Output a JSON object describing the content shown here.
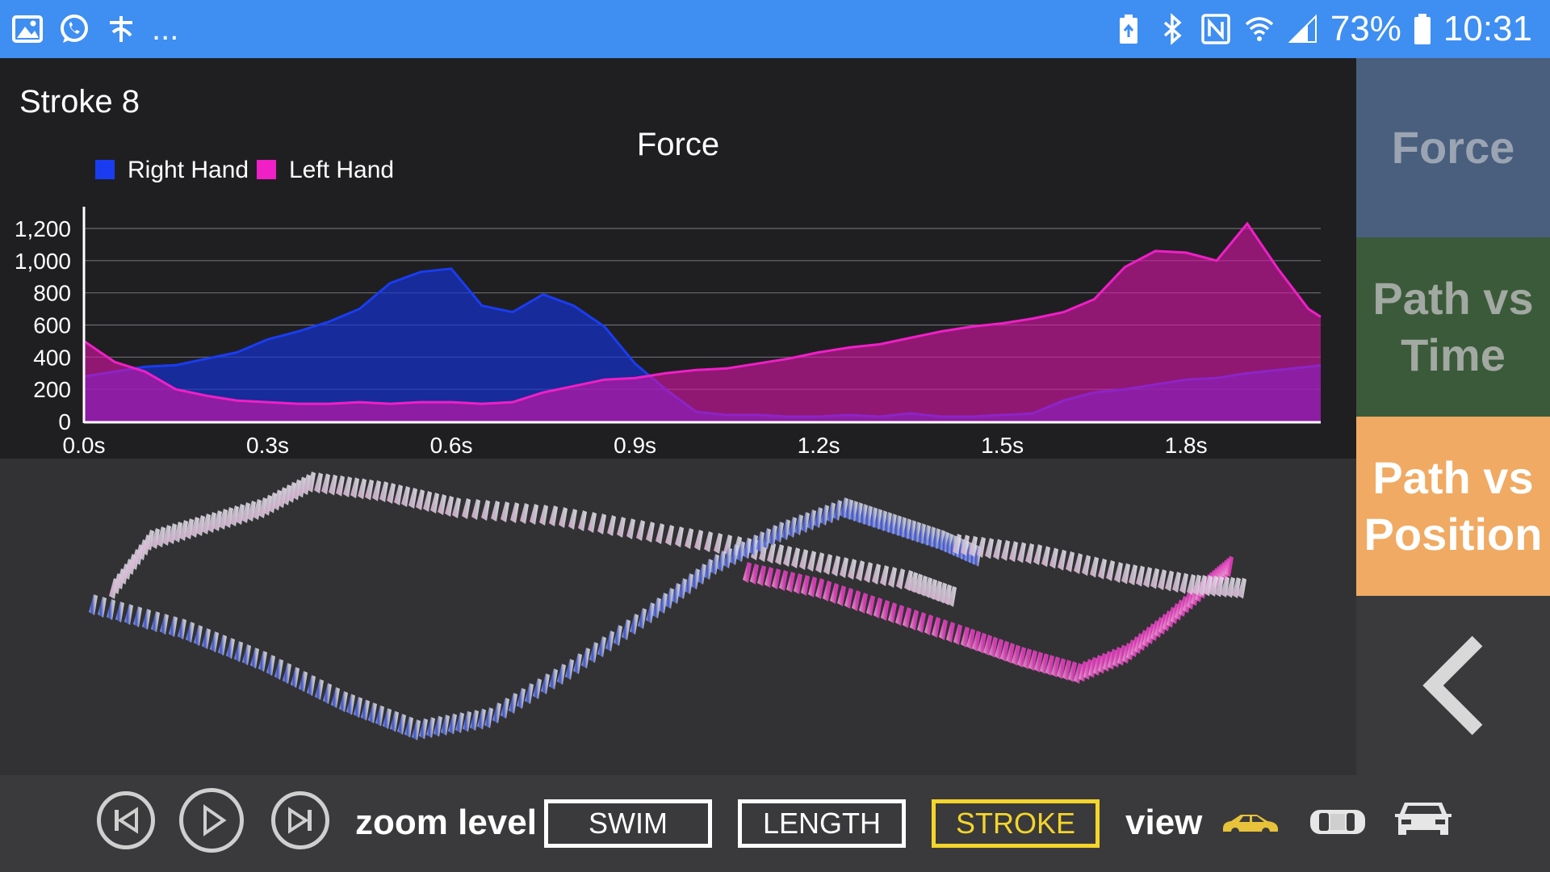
{
  "status_bar": {
    "battery": "73%",
    "time": "10:31",
    "more": "...",
    "icons_left": [
      "image-icon",
      "whatsapp-icon",
      "app-icon",
      "more-icon"
    ],
    "icons_right": [
      "battery-saver-icon",
      "bluetooth-icon",
      "nfc-icon",
      "wifi-icon",
      "signal-icon",
      "battery-icon"
    ]
  },
  "header": {
    "stroke_title": "Stroke 8"
  },
  "chart_data": {
    "type": "area",
    "title": "Force",
    "legend": [
      "Right Hand",
      "Left Hand"
    ],
    "legend_placement": "top-left",
    "colors": {
      "Right Hand": "#1a3cf0",
      "Left Hand": "#f01fc6"
    },
    "x_tick_labels": [
      "0.0s",
      "0.3s",
      "0.6s",
      "0.9s",
      "1.2s",
      "1.5s",
      "1.8s"
    ],
    "y_tick_labels": [
      "0",
      "200",
      "400",
      "600",
      "800",
      "1,000",
      "1,200"
    ],
    "x_range": [
      0,
      2.02
    ],
    "ylim": [
      0,
      1250
    ],
    "grid": true,
    "x": [
      0.0,
      0.05,
      0.1,
      0.15,
      0.2,
      0.25,
      0.3,
      0.35,
      0.4,
      0.45,
      0.5,
      0.55,
      0.6,
      0.65,
      0.7,
      0.75,
      0.8,
      0.85,
      0.9,
      0.95,
      1.0,
      1.05,
      1.1,
      1.15,
      1.2,
      1.25,
      1.3,
      1.35,
      1.4,
      1.45,
      1.5,
      1.55,
      1.6,
      1.65,
      1.7,
      1.75,
      1.8,
      1.85,
      1.9,
      1.95,
      2.0,
      2.02
    ],
    "series": [
      {
        "name": "Right Hand",
        "values": [
          280,
          310,
          340,
          350,
          390,
          430,
          510,
          560,
          620,
          700,
          860,
          930,
          950,
          720,
          680,
          790,
          720,
          590,
          360,
          200,
          60,
          40,
          40,
          30,
          30,
          40,
          30,
          50,
          30,
          30,
          40,
          50,
          130,
          180,
          200,
          230,
          260,
          270,
          300,
          320,
          340,
          350
        ]
      },
      {
        "name": "Left Hand",
        "values": [
          500,
          370,
          310,
          200,
          160,
          130,
          120,
          110,
          110,
          120,
          110,
          120,
          120,
          110,
          120,
          180,
          220,
          260,
          270,
          300,
          320,
          330,
          360,
          390,
          430,
          460,
          480,
          520,
          560,
          590,
          610,
          640,
          680,
          760,
          960,
          1060,
          1050,
          1000,
          1230,
          950,
          700,
          650
        ]
      }
    ]
  },
  "zoom": {
    "label": "zoom level",
    "buttons": [
      "SWIM",
      "LENGTH",
      "STROKE"
    ],
    "active": "STROKE"
  },
  "view": {
    "label": "view",
    "icons": [
      "car-side-icon",
      "car-top-icon",
      "car-front-icon"
    ],
    "active_color": "#e8c23a"
  },
  "side_buttons": {
    "force": "Force",
    "path_vs_time": "Path vs Time",
    "path_vs_position": "Path vs Position"
  }
}
